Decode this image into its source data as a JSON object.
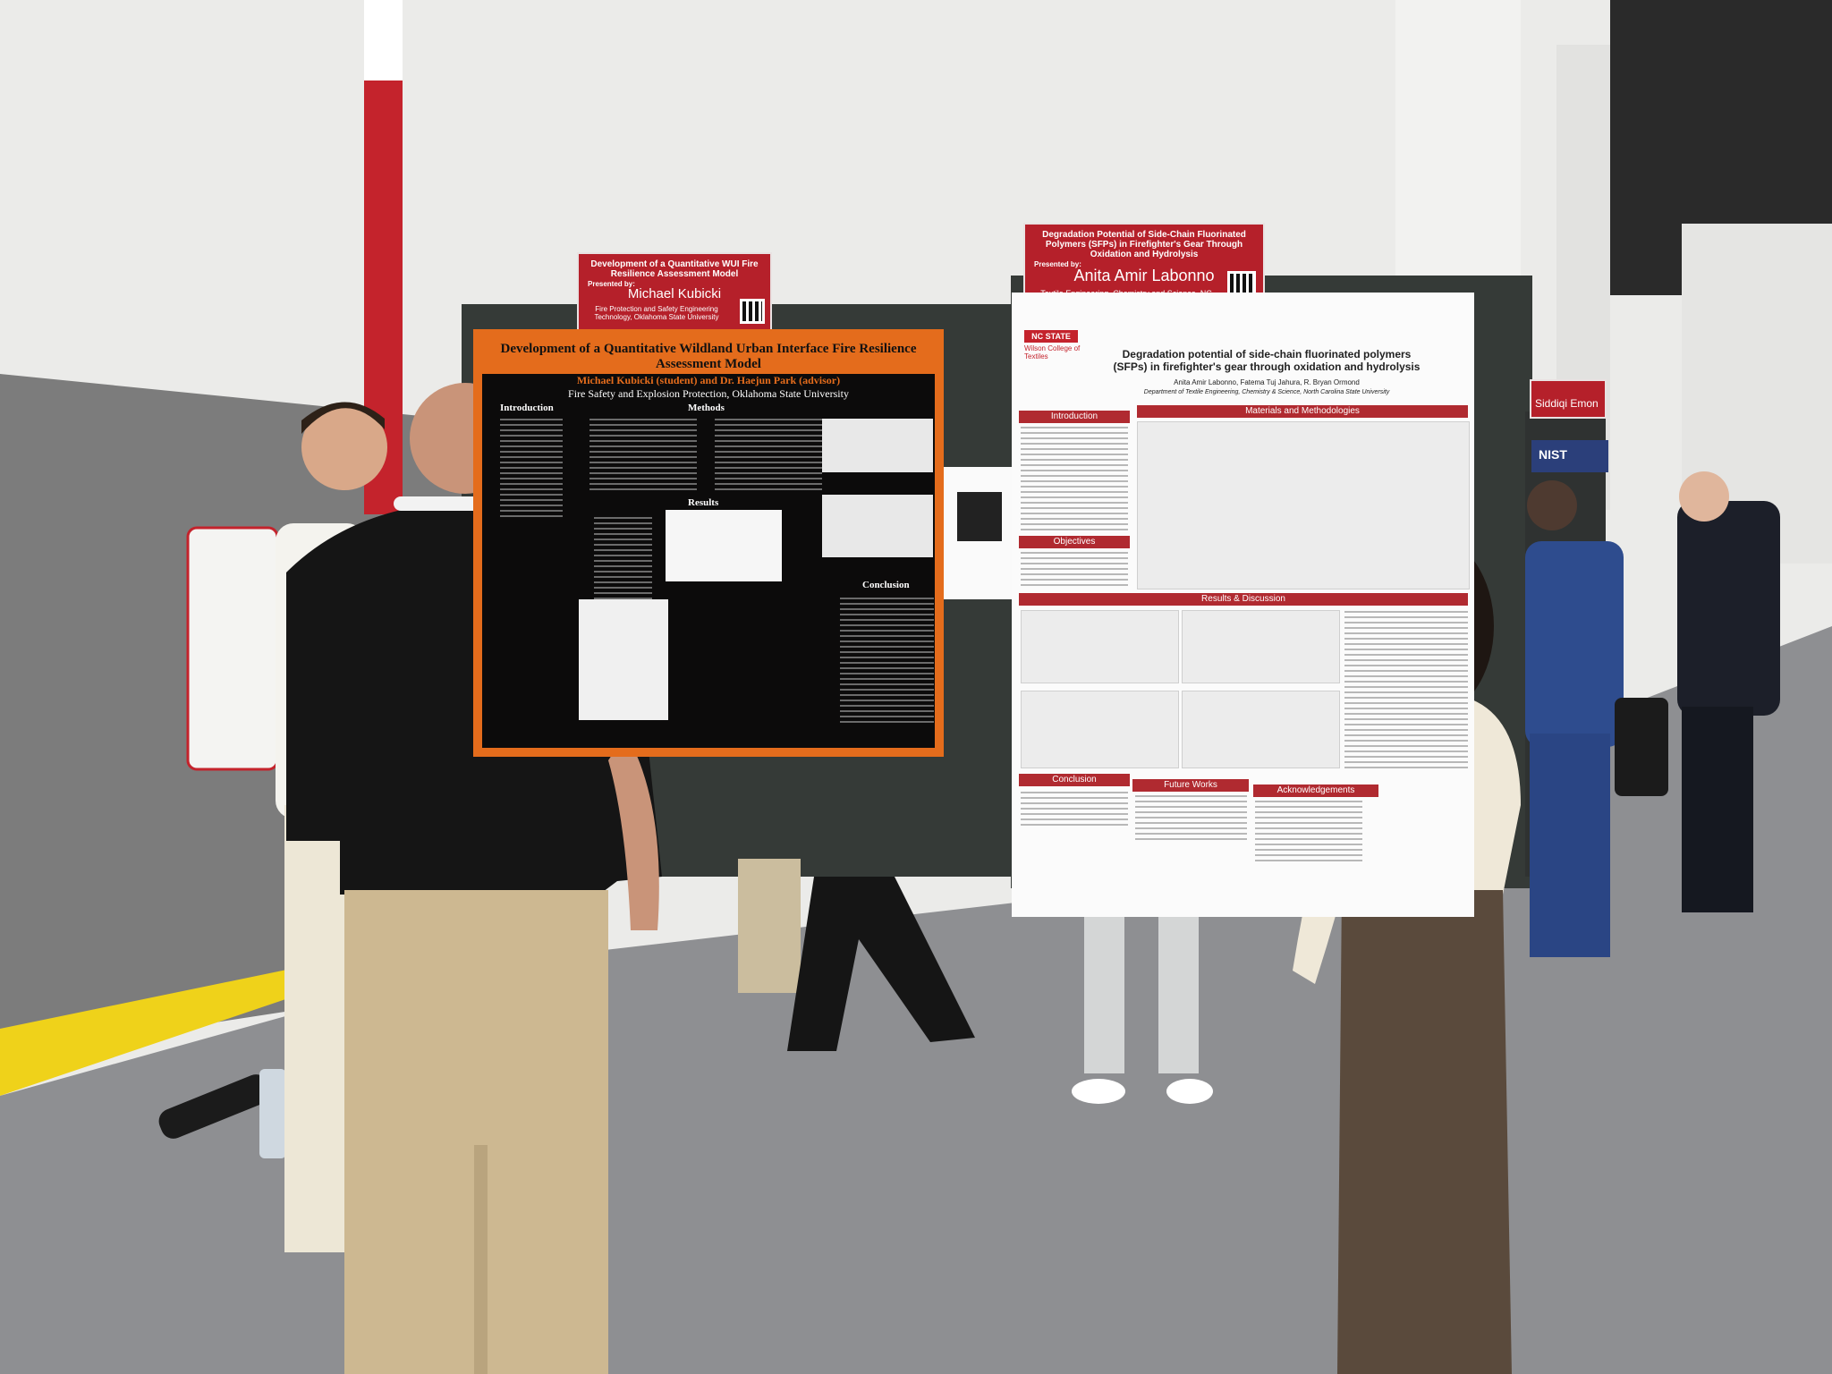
{
  "sign_left": {
    "title": "Development of a Quantitative WUI Fire Resilience Assessment Model",
    "presented_by": "Presented by:",
    "presenter": "Michael Kubicki",
    "affiliation": "Fire Protection and Safety Engineering Technology, Oklahoma State University"
  },
  "sign_right": {
    "title": "Degradation Potential of Side-Chain Fluorinated Polymers (SFPs) in Firefighter's Gear Through Oxidation and Hydrolysis",
    "presented_by": "Presented by:",
    "presenter": "Anita Amir Labonno",
    "affiliation": "Textile Engineering, Chemistry and Science, NC State University"
  },
  "poster_left": {
    "title": "Development of a Quantitative Wildland Urban Interface Fire Resilience Assessment Model",
    "authors": "Michael Kubicki (student) and Dr. Haejun Park (advisor)",
    "affiliation": "Fire Safety and Explosion Protection, Oklahoma State University",
    "sections": [
      "Introduction",
      "Methods",
      "Results",
      "Conclusion"
    ]
  },
  "poster_right": {
    "logo": "NC STATE",
    "college": "Wilson College of Textiles",
    "title": "Degradation potential of side-chain fluorinated polymers (SFPs) in firefighter's gear through oxidation and hydrolysis",
    "authors": "Anita Amir Labonno, Fatema Tuj Jahura, R. Bryan Ormond",
    "affiliation": "Department of Textile Engineering, Chemistry & Science, North Carolina State University",
    "sections": [
      "Introduction",
      "Materials and Methodologies",
      "Objectives",
      "Results & Discussion",
      "Conclusion",
      "Future Works",
      "Acknowledgements"
    ]
  },
  "far_sign": {
    "presenter": "Siddiqi Emon",
    "logo": "NIST"
  }
}
